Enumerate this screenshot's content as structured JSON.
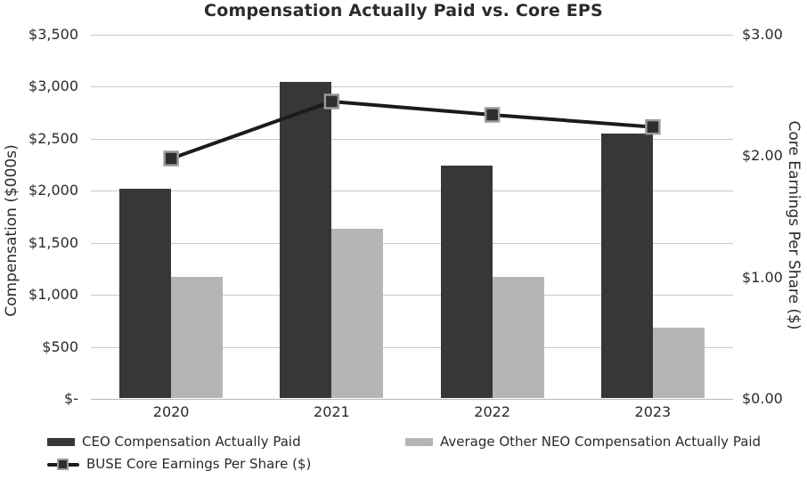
{
  "chart_data": {
    "type": "bar+line",
    "title": "Compensation Actually Paid vs. Core EPS",
    "categories": [
      "2020",
      "2021",
      "2022",
      "2023"
    ],
    "series": [
      {
        "key": "ceo",
        "name": "CEO Compensation Actually Paid",
        "type": "bar",
        "axis": "left",
        "color": "#373737",
        "values": [
          2015,
          3040,
          2235,
          2545
        ]
      },
      {
        "key": "neo",
        "name": "Average Other NEO Compensation Actually Paid",
        "type": "bar",
        "axis": "left",
        "color": "#b5b5b5",
        "values": [
          1165,
          1630,
          1165,
          675
        ]
      },
      {
        "key": "eps",
        "name": "BUSE Core Earnings Per Share ($)",
        "type": "line",
        "axis": "right",
        "color": "#1b1b1b",
        "marker": "square",
        "marker_fill": "#2e2e2e",
        "marker_stroke": "#9a9a9a",
        "values": [
          1.98,
          2.45,
          2.34,
          2.24
        ]
      }
    ],
    "left_axis": {
      "label": "Compensation ($000s)",
      "ticks": [
        "$3,500",
        "$3,000",
        "$2,500",
        "$2,000",
        "$1,500",
        "$1,000",
        "$500",
        "$-"
      ],
      "tick_values": [
        3500,
        3000,
        2500,
        2000,
        1500,
        1000,
        500,
        0
      ],
      "min": 0,
      "max": 3500
    },
    "right_axis": {
      "label": "Core Earnings Per Share ($)",
      "ticks": [
        "$3.00",
        "$2.00",
        "$1.00",
        "$0.00"
      ],
      "tick_values": [
        3,
        2,
        1,
        0
      ],
      "min": 0,
      "max": 3
    },
    "grid": true,
    "legend_position": "bottom"
  },
  "legend": {
    "items": [
      {
        "label": "CEO Compensation Actually Paid",
        "swatch": "bar-dark"
      },
      {
        "label": "Average Other NEO Compensation Actually Paid",
        "swatch": "bar-gray"
      },
      {
        "label": "BUSE Core Earnings Per Share ($)",
        "swatch": "line-marker"
      }
    ]
  },
  "colors": {
    "background": "#ffffff",
    "title_text": "#2b2b2b",
    "tick_text": "#2a2a2a",
    "gridline": "#c9c9c9",
    "baseline": "#b7b7b7",
    "bar_dark": "#373737",
    "bar_gray": "#b5b5b5",
    "line": "#1b1b1b",
    "marker_fill": "#2e2e2e",
    "marker_stroke": "#9a9a9a"
  }
}
